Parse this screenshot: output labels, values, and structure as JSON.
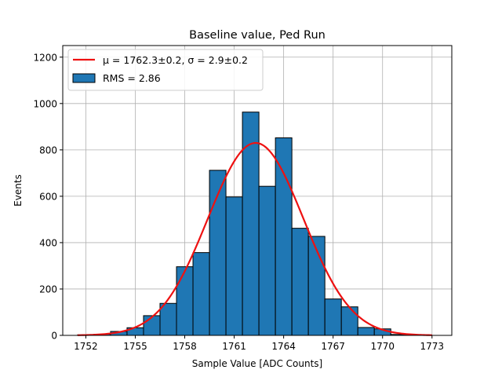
{
  "chart_data": {
    "type": "bar",
    "title": "Baseline value, Ped Run",
    "xlabel": "Sample Value [ADC Counts]",
    "ylabel": "Events",
    "xlim": [
      1750.6,
      1774.2
    ],
    "ylim": [
      0,
      1250
    ],
    "xticks": [
      1752,
      1755,
      1758,
      1761,
      1764,
      1767,
      1770,
      1773
    ],
    "yticks": [
      0,
      200,
      400,
      600,
      800,
      1000,
      1200
    ],
    "grid": true,
    "legend_position": "top-left",
    "bins": [
      {
        "x0": 1751.5,
        "x1": 1752.5,
        "value": 2
      },
      {
        "x0": 1752.5,
        "x1": 1753.5,
        "value": 5
      },
      {
        "x0": 1753.5,
        "x1": 1754.5,
        "value": 17
      },
      {
        "x0": 1754.5,
        "x1": 1755.5,
        "value": 33
      },
      {
        "x0": 1755.5,
        "x1": 1756.5,
        "value": 85
      },
      {
        "x0": 1756.5,
        "x1": 1757.5,
        "value": 138
      },
      {
        "x0": 1757.5,
        "x1": 1758.5,
        "value": 296
      },
      {
        "x0": 1758.5,
        "x1": 1759.5,
        "value": 357
      },
      {
        "x0": 1759.5,
        "x1": 1760.5,
        "value": 712
      },
      {
        "x0": 1760.5,
        "x1": 1761.5,
        "value": 597
      },
      {
        "x0": 1761.5,
        "x1": 1762.5,
        "value": 963
      },
      {
        "x0": 1762.5,
        "x1": 1763.5,
        "value": 643
      },
      {
        "x0": 1763.5,
        "x1": 1764.5,
        "value": 852
      },
      {
        "x0": 1764.5,
        "x1": 1765.5,
        "value": 462
      },
      {
        "x0": 1765.5,
        "x1": 1766.5,
        "value": 427
      },
      {
        "x0": 1766.5,
        "x1": 1767.5,
        "value": 157
      },
      {
        "x0": 1767.5,
        "x1": 1768.5,
        "value": 123
      },
      {
        "x0": 1768.5,
        "x1": 1769.5,
        "value": 34
      },
      {
        "x0": 1769.5,
        "x1": 1770.5,
        "value": 28
      },
      {
        "x0": 1770.5,
        "x1": 1771.5,
        "value": 4
      }
    ],
    "fit": {
      "mean": 1762.3,
      "sigma": 2.9,
      "amplitude": 830,
      "x_range": [
        1751.5,
        1773.0
      ]
    },
    "legend": [
      {
        "kind": "line",
        "label": "μ = 1762.3±0.2, σ = 2.9±0.2"
      },
      {
        "kind": "bar",
        "label": "RMS = 2.86"
      }
    ],
    "colors": {
      "bar": "#1f77b4",
      "bar_edge": "#000000",
      "fit": "#ee1111",
      "grid": "#b0b0b0"
    }
  }
}
